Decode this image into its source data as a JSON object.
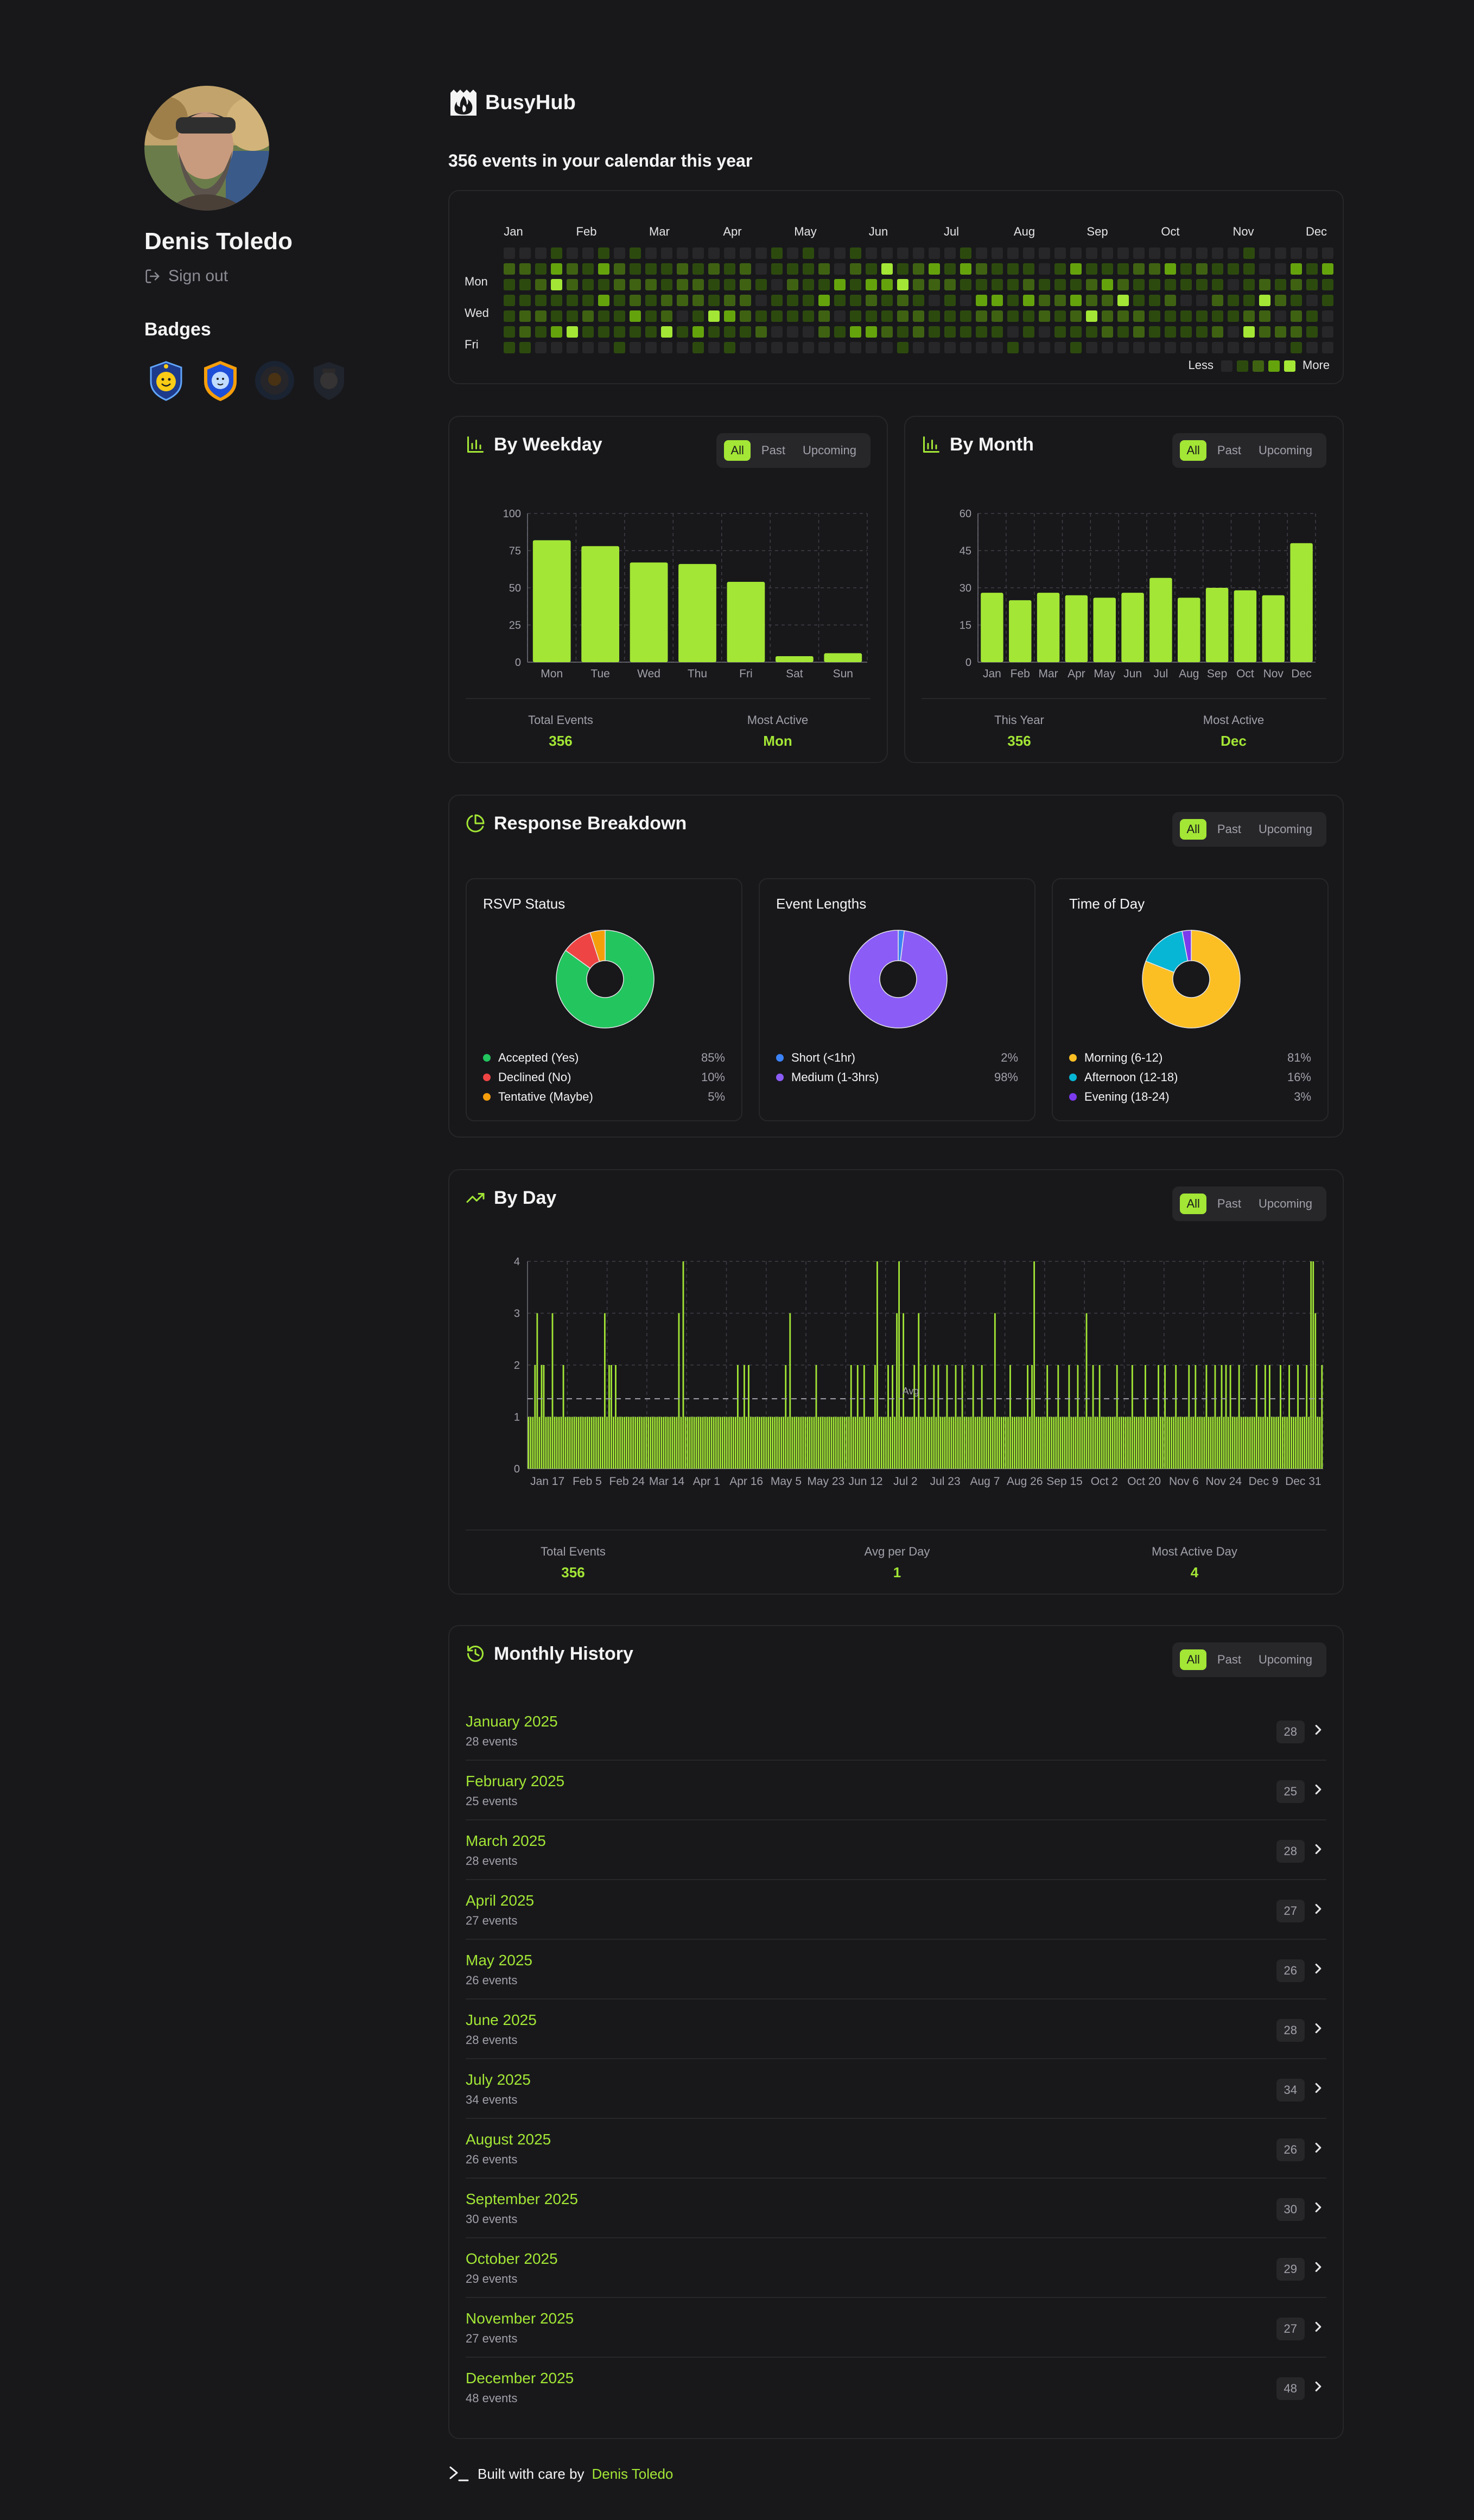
{
  "profile": {
    "name": "Denis Toledo",
    "sign_out": "Sign out",
    "badges_title": "Badges"
  },
  "brand": {
    "name": "BusyHub"
  },
  "summary": "356 events in your calendar this year",
  "heatmap": {
    "months": [
      "Jan",
      "Feb",
      "Mar",
      "Apr",
      "May",
      "Jun",
      "Jul",
      "Aug",
      "Sep",
      "Oct",
      "Nov",
      "Dec"
    ],
    "days": [
      "Mon",
      "Wed",
      "Fri"
    ],
    "legend_less": "Less",
    "legend_more": "More",
    "colors": [
      "#27272a",
      "#2d4a0e",
      "#3f6212",
      "#65a30d",
      "#a3e635"
    ]
  },
  "filters": {
    "all": "All",
    "past": "Past",
    "upcoming": "Upcoming"
  },
  "by_weekday": {
    "title": "By Weekday",
    "stats": [
      {
        "label": "Total Events",
        "value": "356"
      },
      {
        "label": "Most Active",
        "value": "Mon"
      }
    ]
  },
  "by_month": {
    "title": "By Month",
    "stats": [
      {
        "label": "This Year",
        "value": "356"
      },
      {
        "label": "Most Active",
        "value": "Dec"
      }
    ]
  },
  "response": {
    "title": "Response Breakdown",
    "rsvp": {
      "title": "RSVP Status",
      "items": [
        {
          "label": "Accepted (Yes)",
          "pct": "85%",
          "value": 85,
          "color": "#22c55e"
        },
        {
          "label": "Declined (No)",
          "pct": "10%",
          "value": 10,
          "color": "#ef4444"
        },
        {
          "label": "Tentative (Maybe)",
          "pct": "5%",
          "value": 5,
          "color": "#f59e0b"
        }
      ]
    },
    "lengths": {
      "title": "Event Lengths",
      "items": [
        {
          "label": "Short (<1hr)",
          "pct": "2%",
          "value": 2,
          "color": "#3b82f6"
        },
        {
          "label": "Medium (1-3hrs)",
          "pct": "98%",
          "value": 98,
          "color": "#8b5cf6"
        }
      ]
    },
    "time_of_day": {
      "title": "Time of Day",
      "items": [
        {
          "label": "Morning (6-12)",
          "pct": "81%",
          "value": 81,
          "color": "#fbbf24"
        },
        {
          "label": "Afternoon (12-18)",
          "pct": "16%",
          "value": 16,
          "color": "#06b6d4"
        },
        {
          "label": "Evening (18-24)",
          "pct": "3%",
          "value": 3,
          "color": "#7c3aed"
        }
      ]
    }
  },
  "by_day": {
    "title": "By Day",
    "avg_label": "Avg",
    "stats": [
      {
        "label": "Total Events",
        "value": "356"
      },
      {
        "label": "Avg per Day",
        "value": "1"
      },
      {
        "label": "Most Active Day",
        "value": "4"
      }
    ]
  },
  "history": {
    "title": "Monthly History",
    "months": [
      {
        "name": "January 2025",
        "events": "28 events",
        "count": "28"
      },
      {
        "name": "February 2025",
        "events": "25 events",
        "count": "25"
      },
      {
        "name": "March 2025",
        "events": "28 events",
        "count": "28"
      },
      {
        "name": "April 2025",
        "events": "27 events",
        "count": "27"
      },
      {
        "name": "May 2025",
        "events": "26 events",
        "count": "26"
      },
      {
        "name": "June 2025",
        "events": "28 events",
        "count": "28"
      },
      {
        "name": "July 2025",
        "events": "34 events",
        "count": "34"
      },
      {
        "name": "August 2025",
        "events": "26 events",
        "count": "26"
      },
      {
        "name": "September 2025",
        "events": "30 events",
        "count": "30"
      },
      {
        "name": "October 2025",
        "events": "29 events",
        "count": "29"
      },
      {
        "name": "November 2025",
        "events": "27 events",
        "count": "27"
      },
      {
        "name": "December 2025",
        "events": "48 events",
        "count": "48"
      }
    ]
  },
  "footer": {
    "text": "Built with care by",
    "author": "Denis Toledo"
  },
  "chart_data": [
    {
      "type": "bar",
      "title": "By Weekday",
      "categories": [
        "Mon",
        "Tue",
        "Wed",
        "Thu",
        "Fri",
        "Sat",
        "Sun"
      ],
      "values": [
        82,
        78,
        67,
        66,
        54,
        4,
        6
      ],
      "ylim": [
        0,
        100
      ],
      "yticks": [
        0,
        25,
        50,
        75,
        100
      ]
    },
    {
      "type": "bar",
      "title": "By Month",
      "categories": [
        "Jan",
        "Feb",
        "Mar",
        "Apr",
        "May",
        "Jun",
        "Jul",
        "Aug",
        "Sep",
        "Oct",
        "Nov",
        "Dec"
      ],
      "values": [
        28,
        25,
        28,
        27,
        26,
        28,
        34,
        26,
        30,
        29,
        27,
        48
      ],
      "ylim": [
        0,
        60
      ],
      "yticks": [
        0,
        15,
        30,
        45,
        60
      ]
    },
    {
      "type": "bar",
      "title": "By Day",
      "x_start": "Jan 1",
      "x_end": "Dec 31",
      "xticks": [
        "Jan 17",
        "Feb 5",
        "Feb 24",
        "Mar 14",
        "Apr 1",
        "Apr 16",
        "May 5",
        "May 23",
        "Jun 12",
        "Jul 2",
        "Jul 23",
        "Aug 7",
        "Aug 26",
        "Sep 15",
        "Oct 2",
        "Oct 20",
        "Nov 6",
        "Nov 24",
        "Dec 9",
        "Dec 31"
      ],
      "ylim": [
        0,
        4
      ],
      "yticks": [
        0,
        1,
        2,
        3,
        4
      ],
      "avg_line": 1.35,
      "base_value": 1,
      "peaks": [
        {
          "day": 3,
          "value": 2
        },
        {
          "day": 4,
          "value": 3
        },
        {
          "day": 6,
          "value": 2
        },
        {
          "day": 7,
          "value": 2
        },
        {
          "day": 11,
          "value": 3
        },
        {
          "day": 16,
          "value": 2
        },
        {
          "day": 35,
          "value": 3
        },
        {
          "day": 37,
          "value": 2
        },
        {
          "day": 38,
          "value": 2
        },
        {
          "day": 40,
          "value": 2
        },
        {
          "day": 69,
          "value": 3
        },
        {
          "day": 71,
          "value": 4
        },
        {
          "day": 96,
          "value": 2
        },
        {
          "day": 99,
          "value": 2
        },
        {
          "day": 101,
          "value": 2
        },
        {
          "day": 118,
          "value": 2
        },
        {
          "day": 120,
          "value": 3
        },
        {
          "day": 132,
          "value": 2
        },
        {
          "day": 148,
          "value": 2
        },
        {
          "day": 151,
          "value": 2
        },
        {
          "day": 154,
          "value": 2
        },
        {
          "day": 159,
          "value": 2
        },
        {
          "day": 160,
          "value": 4
        },
        {
          "day": 165,
          "value": 2
        },
        {
          "day": 167,
          "value": 2
        },
        {
          "day": 169,
          "value": 3
        },
        {
          "day": 170,
          "value": 4
        },
        {
          "day": 172,
          "value": 3
        },
        {
          "day": 177,
          "value": 2
        },
        {
          "day": 179,
          "value": 3
        },
        {
          "day": 182,
          "value": 2
        },
        {
          "day": 186,
          "value": 2
        },
        {
          "day": 188,
          "value": 2
        },
        {
          "day": 192,
          "value": 2
        },
        {
          "day": 196,
          "value": 2
        },
        {
          "day": 199,
          "value": 2
        },
        {
          "day": 204,
          "value": 2
        },
        {
          "day": 208,
          "value": 2
        },
        {
          "day": 214,
          "value": 3
        },
        {
          "day": 221,
          "value": 2
        },
        {
          "day": 229,
          "value": 2
        },
        {
          "day": 231,
          "value": 2
        },
        {
          "day": 232,
          "value": 4
        },
        {
          "day": 238,
          "value": 2
        },
        {
          "day": 243,
          "value": 2
        },
        {
          "day": 248,
          "value": 2
        },
        {
          "day": 252,
          "value": 2
        },
        {
          "day": 256,
          "value": 3
        },
        {
          "day": 259,
          "value": 2
        },
        {
          "day": 262,
          "value": 2
        },
        {
          "day": 270,
          "value": 2
        },
        {
          "day": 277,
          "value": 2
        },
        {
          "day": 283,
          "value": 2
        },
        {
          "day": 289,
          "value": 2
        },
        {
          "day": 292,
          "value": 2
        },
        {
          "day": 297,
          "value": 2
        },
        {
          "day": 303,
          "value": 2
        },
        {
          "day": 306,
          "value": 2
        },
        {
          "day": 311,
          "value": 2
        },
        {
          "day": 315,
          "value": 2
        },
        {
          "day": 318,
          "value": 2
        },
        {
          "day": 320,
          "value": 2
        },
        {
          "day": 322,
          "value": 2
        },
        {
          "day": 326,
          "value": 2
        },
        {
          "day": 334,
          "value": 2
        },
        {
          "day": 338,
          "value": 2
        },
        {
          "day": 340,
          "value": 2
        },
        {
          "day": 345,
          "value": 2
        },
        {
          "day": 349,
          "value": 2
        },
        {
          "day": 353,
          "value": 2
        },
        {
          "day": 357,
          "value": 2
        },
        {
          "day": 359,
          "value": 4
        },
        {
          "day": 360,
          "value": 4
        },
        {
          "day": 361,
          "value": 3
        },
        {
          "day": 364,
          "value": 2
        }
      ]
    },
    {
      "type": "pie",
      "title": "RSVP Status",
      "labels": [
        "Accepted (Yes)",
        "Declined (No)",
        "Tentative (Maybe)"
      ],
      "values": [
        85,
        10,
        5
      ]
    },
    {
      "type": "pie",
      "title": "Event Lengths",
      "labels": [
        "Short (<1hr)",
        "Medium (1-3hrs)"
      ],
      "values": [
        2,
        98
      ]
    },
    {
      "type": "pie",
      "title": "Time of Day",
      "labels": [
        "Morning (6-12)",
        "Afternoon (12-18)",
        "Evening (18-24)"
      ],
      "values": [
        81,
        16,
        3
      ]
    }
  ]
}
